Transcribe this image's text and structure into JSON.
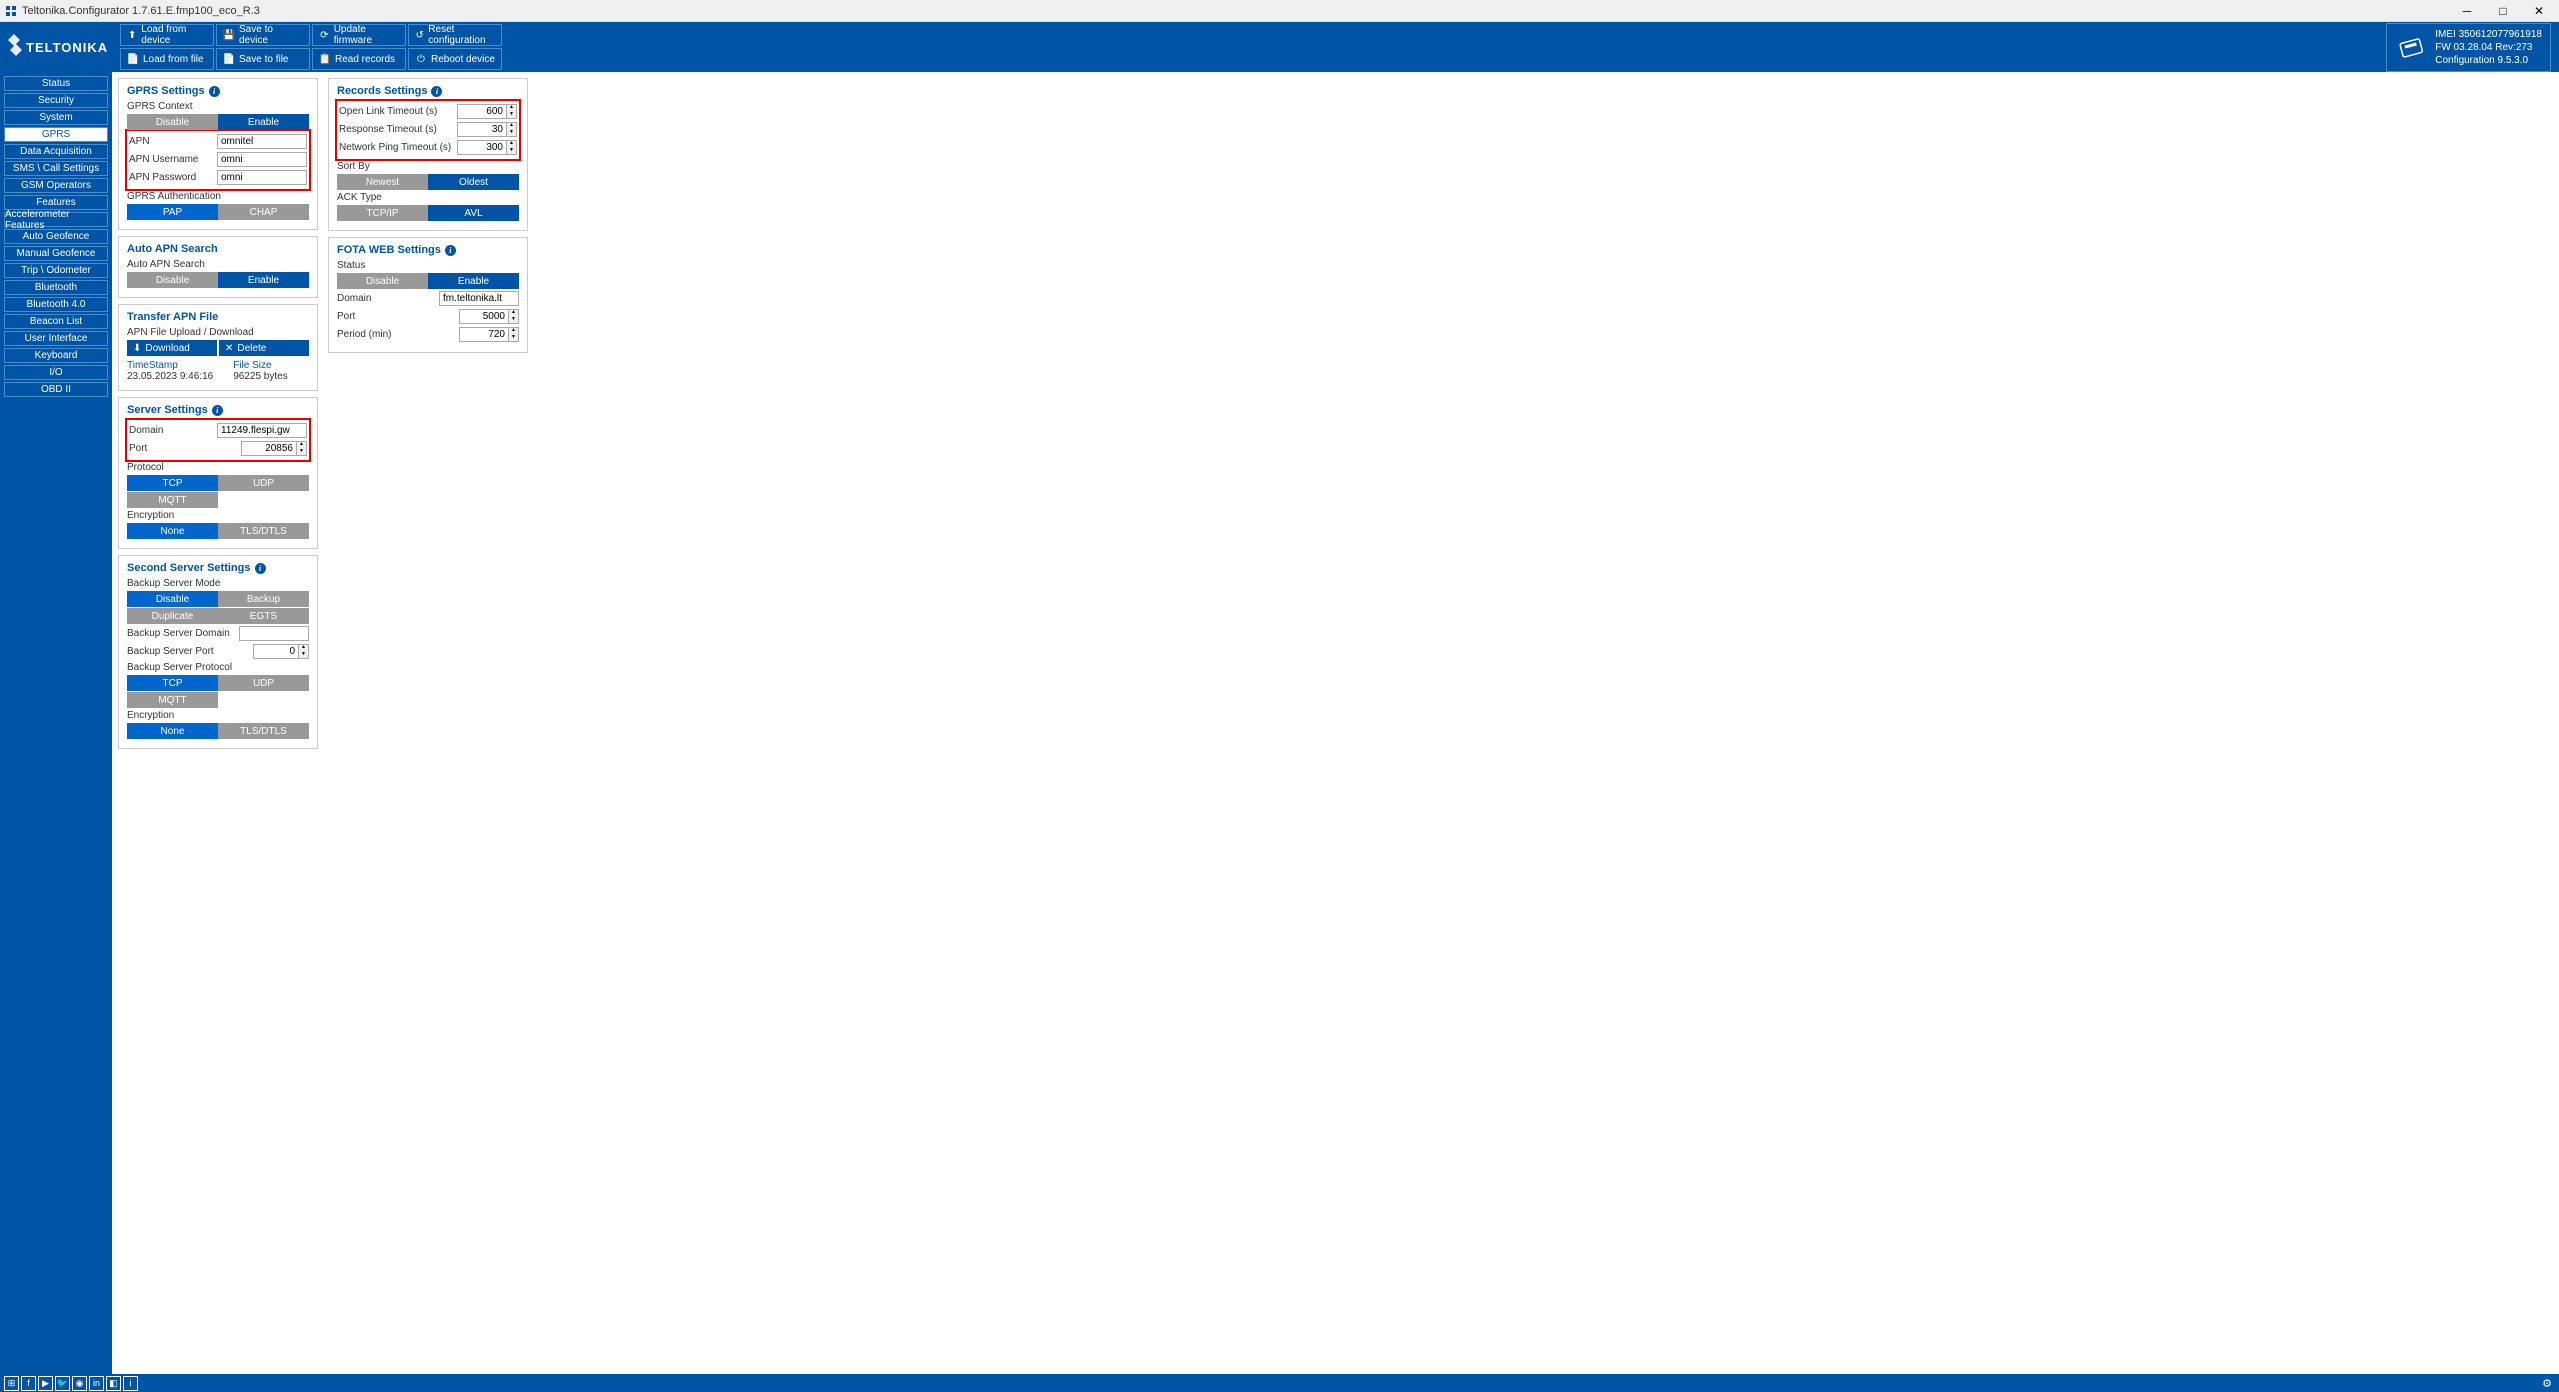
{
  "window": {
    "title": "Teltonika.Configurator 1.7.61.E.fmp100_eco_R.3"
  },
  "brand": "TELTONIKA",
  "toolbar": {
    "row1": [
      {
        "icon": "upload",
        "label": "Load from device"
      },
      {
        "icon": "save",
        "label": "Save to device"
      },
      {
        "icon": "update",
        "label": "Update firmware"
      },
      {
        "icon": "reset",
        "label": "Reset configuration"
      }
    ],
    "row2": [
      {
        "icon": "file-load",
        "label": "Load from file"
      },
      {
        "icon": "file-save",
        "label": "Save to file"
      },
      {
        "icon": "records",
        "label": "Read records"
      },
      {
        "icon": "reboot",
        "label": "Reboot device"
      }
    ]
  },
  "device": {
    "imei_label": "IMEI",
    "imei": "350612077961918",
    "fw_label": "FW",
    "fw": "03.28.04 Rev:273",
    "conf_label": "Configuration",
    "conf": "9.5.3.0"
  },
  "nav": [
    {
      "label": "Status",
      "active": false
    },
    {
      "label": "Security",
      "active": false
    },
    {
      "label": "System",
      "active": false
    },
    {
      "label": "GPRS",
      "active": true
    },
    {
      "label": "Data Acquisition",
      "active": false
    },
    {
      "label": "SMS \\ Call Settings",
      "active": false
    },
    {
      "label": "GSM Operators",
      "active": false
    },
    {
      "label": "Features",
      "active": false
    },
    {
      "label": "Accelerometer Features",
      "active": false
    },
    {
      "label": "Auto Geofence",
      "active": false
    },
    {
      "label": "Manual Geofence",
      "active": false
    },
    {
      "label": "Trip \\ Odometer",
      "active": false
    },
    {
      "label": "Bluetooth",
      "active": false
    },
    {
      "label": "Bluetooth 4.0",
      "active": false
    },
    {
      "label": "Beacon List",
      "active": false
    },
    {
      "label": "User Interface",
      "active": false
    },
    {
      "label": "Keyboard",
      "active": false
    },
    {
      "label": "I/O",
      "active": false
    },
    {
      "label": "OBD II",
      "active": false
    }
  ],
  "gprs": {
    "title": "GPRS Settings",
    "context_label": "GPRS Context",
    "disable": "Disable",
    "enable": "Enable",
    "apn_label": "APN",
    "apn": "omnitel",
    "apn_user_label": "APN Username",
    "apn_user": "omni",
    "apn_pass_label": "APN Password",
    "apn_pass": "omni",
    "auth_label": "GPRS Authentication",
    "pap": "PAP",
    "chap": "CHAP"
  },
  "autoapn": {
    "title": "Auto APN Search",
    "label": "Auto APN Search",
    "disable": "Disable",
    "enable": "Enable"
  },
  "transfer": {
    "title": "Transfer APN File",
    "upload_label": "APN File Upload / Download",
    "download": "Download",
    "delete": "Delete",
    "ts_label": "TimeStamp",
    "ts": "23.05.2023 9:46:16",
    "size_label": "File Size",
    "size": "96225 bytes"
  },
  "server": {
    "title": "Server Settings",
    "domain_label": "Domain",
    "domain": "11249.flespi.gw",
    "port_label": "Port",
    "port": "20856",
    "protocol_label": "Protocol",
    "tcp": "TCP",
    "udp": "UDP",
    "mqtt": "MQTT",
    "enc_label": "Encryption",
    "none": "None",
    "tls": "TLS/DTLS"
  },
  "second": {
    "title": "Second Server Settings",
    "mode_label": "Backup Server Mode",
    "disable": "Disable",
    "backup": "Backup",
    "duplicate": "Duplicate",
    "egts": "EGTS",
    "domain_label": "Backup Server Domain",
    "domain": "",
    "port_label": "Backup Server Port",
    "port": "0",
    "protocol_label": "Backup Server Protocol",
    "tcp": "TCP",
    "udp": "UDP",
    "mqtt": "MQTT",
    "enc_label": "Encryption",
    "none": "None",
    "tls": "TLS/DTLS"
  },
  "records": {
    "title": "Records Settings",
    "open_link_label": "Open Link Timeout   (s)",
    "open_link": "600",
    "response_label": "Response Timeout   (s)",
    "response": "30",
    "ping_label": "Network Ping Timeout   (s)",
    "ping": "300",
    "sort_label": "Sort By",
    "newest": "Newest",
    "oldest": "Oldest",
    "ack_label": "ACK Type",
    "tcpip": "TCP/IP",
    "avl": "AVL"
  },
  "fota": {
    "title": "FOTA WEB Settings",
    "status_label": "Status",
    "disable": "Disable",
    "enable": "Enable",
    "domain_label": "Domain",
    "domain": "fm.teltonika.lt",
    "port_label": "Port",
    "port": "5000",
    "period_label": "Period (min)",
    "period": "720"
  }
}
